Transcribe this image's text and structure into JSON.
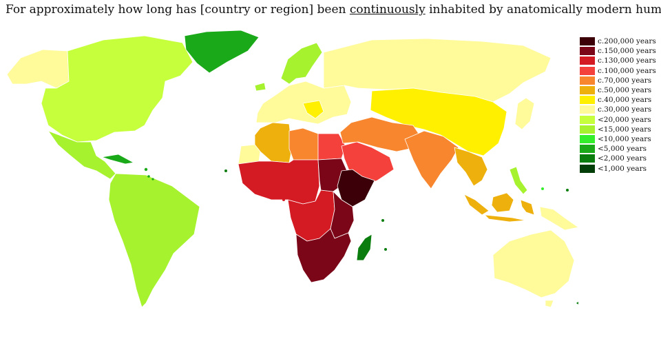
{
  "title": {
    "before": "For approximately how long has [country or region] been ",
    "emph": "continuously",
    "after": " inhabited by anatomically modern humans?"
  },
  "legend": [
    {
      "label": "c.200,000 years",
      "color": "#3b0008"
    },
    {
      "label": "c.150,000 years",
      "color": "#7a0618"
    },
    {
      "label": "c.130,000 years",
      "color": "#d41a23"
    },
    {
      "label": "c.100,000 years",
      "color": "#f4413c"
    },
    {
      "label": "c.70,000 years",
      "color": "#f7862e"
    },
    {
      "label": "c.50,000 years",
      "color": "#eeb00d"
    },
    {
      "label": "c.40,000 years",
      "color": "#fff000"
    },
    {
      "label": "c.30,000 years",
      "color": "#fffa9a"
    },
    {
      "label": "<20,000 years",
      "color": "#c6ff3c"
    },
    {
      "label": "<15,000 years",
      "color": "#a6f22e"
    },
    {
      "label": "<10,000 years",
      "color": "#33ee2a"
    },
    {
      "label": "<5,000 years",
      "color": "#19a919"
    },
    {
      "label": "<2,000 years",
      "color": "#0a7d0e"
    },
    {
      "label": "<1,000 years",
      "color": "#033d08"
    }
  ]
}
